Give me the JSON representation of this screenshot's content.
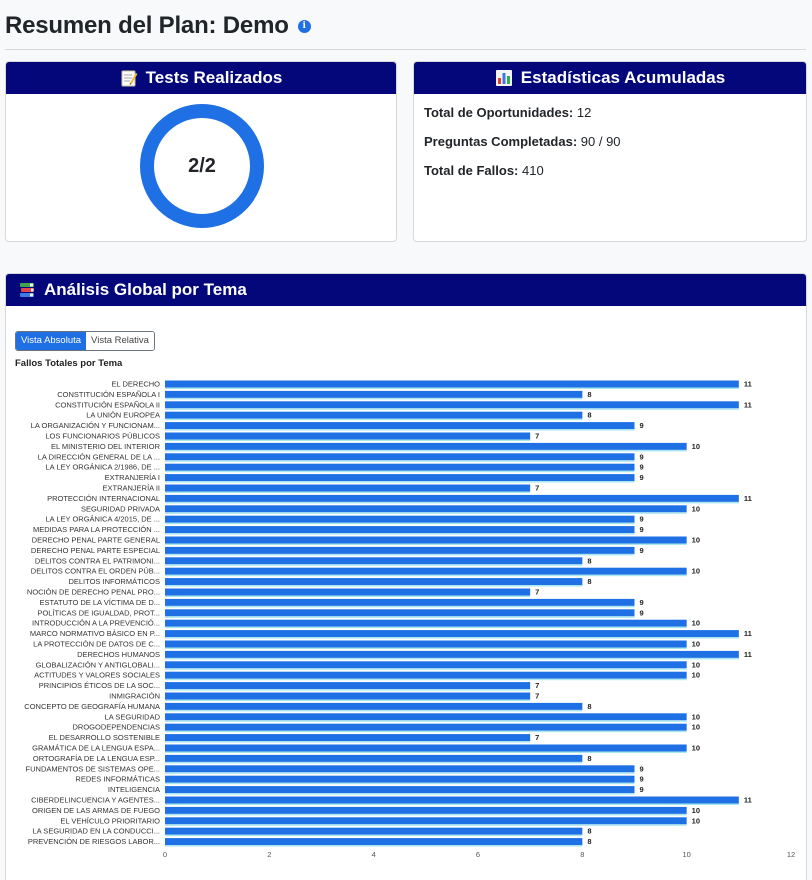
{
  "page": {
    "title": "Resumen del Plan: Demo",
    "info_icon": "info-icon"
  },
  "tests_card": {
    "title": "Tests Realizados",
    "icon": "memo-icon",
    "done": 2,
    "total": 2,
    "label": "2/2",
    "ring_color": "#1f6fe5"
  },
  "stats_card": {
    "title": "Estadísticas Acumuladas",
    "icon": "bar-chart-icon",
    "items": [
      {
        "label": "Total de Oportunidades:",
        "value": "12"
      },
      {
        "label": "Preguntas Completadas:",
        "value": "90 / 90"
      },
      {
        "label": "Total de Fallos:",
        "value": "410"
      }
    ]
  },
  "analysis_card": {
    "title": "Análisis Global por Tema",
    "icon": "books-icon",
    "toggle": {
      "absolute": "Vista Absoluta",
      "relative": "Vista Relativa",
      "selected": "absolute"
    }
  },
  "colors": {
    "header_bg": "#03077a",
    "bar": "#1f6fe5",
    "accent": "#1f6fe5"
  },
  "chart_data": {
    "type": "bar",
    "orientation": "horizontal",
    "title": "Fallos Totales por Tema",
    "xlim": [
      0,
      12
    ],
    "xticks": [
      0,
      2,
      4,
      6,
      8,
      10,
      12
    ],
    "categories": [
      "EL DERECHO",
      "CONSTITUCIÓN ESPAÑOLA I",
      "CONSTITUCIÓN ESPAÑOLA II",
      "LA UNIÓN EUROPEA",
      "LA ORGANIZACIÓN Y FUNCIONAM...",
      "LOS FUNCIONARIOS PÚBLICOS",
      "EL MINISTERIO DEL INTERIOR",
      "LA DIRECCIÓN GENERAL DE LA ...",
      "LA LEY ORGÁNICA 2/1986, DE ...",
      "EXTRANJERÍA I",
      "EXTRANJERÍA II",
      "PROTECCIÓN INTERNACIONAL",
      "SEGURIDAD PRIVADA",
      "LA LEY ORGÁNICA 4/2015, DE ...",
      "MEDIDAS PARA LA PROTECCIÓN ...",
      "DERECHO PENAL PARTE GENERAL",
      "DERECHO PENAL PARTE ESPECIAL",
      "DELITOS CONTRA EL PATRIMONI...",
      "DELITOS CONTRA EL ORDEN PÚB...",
      "DELITOS INFORMÁTICOS",
      "NOCIÓN DE DERECHO PENAL PRO...",
      "ESTATUTO DE LA VÍCTIMA DE D...",
      "POLÍTICAS DE IGUALDAD, PROT...",
      "INTRODUCCIÓN A LA PREVENCIÓ...",
      "MARCO NORMATIVO BÁSICO EN P...",
      "LA PROTECCIÓN DE DATOS DE C...",
      "DERECHOS HUMANOS",
      "GLOBALIZACIÓN Y ANTIGLOBALI...",
      "ACTITUDES Y VALORES SOCIALES",
      "PRINCIPIOS ÉTICOS DE LA SOC...",
      "INMIGRACIÓN",
      "CONCEPTO DE GEOGRAFÍA HUMANA",
      "LA SEGURIDAD",
      "DROGODEPENDENCIAS",
      "EL DESARROLLO SOSTENIBLE",
      "GRAMÁTICA DE LA LENGUA ESPA...",
      "ORTOGRAFÍA DE LA LENGUA ESP...",
      "FUNDAMENTOS DE SISTEMAS OPE...",
      "REDES INFORMÁTICAS",
      "INTELIGENCIA",
      "CIBERDELINCUENCIA Y AGENTES...",
      "ORIGEN DE LAS ARMAS DE FUEGO",
      "EL VEHÍCULO PRIORITARIO",
      "LA SEGURIDAD EN LA CONDUCCI...",
      "PREVENCIÓN DE RIESGOS LABOR..."
    ],
    "values": [
      11,
      8,
      11,
      8,
      9,
      7,
      10,
      9,
      9,
      9,
      7,
      11,
      10,
      9,
      9,
      10,
      9,
      8,
      10,
      8,
      7,
      9,
      9,
      10,
      11,
      10,
      11,
      10,
      10,
      7,
      7,
      8,
      10,
      10,
      7,
      10,
      8,
      9,
      9,
      9,
      11,
      10,
      10,
      8,
      8
    ]
  }
}
